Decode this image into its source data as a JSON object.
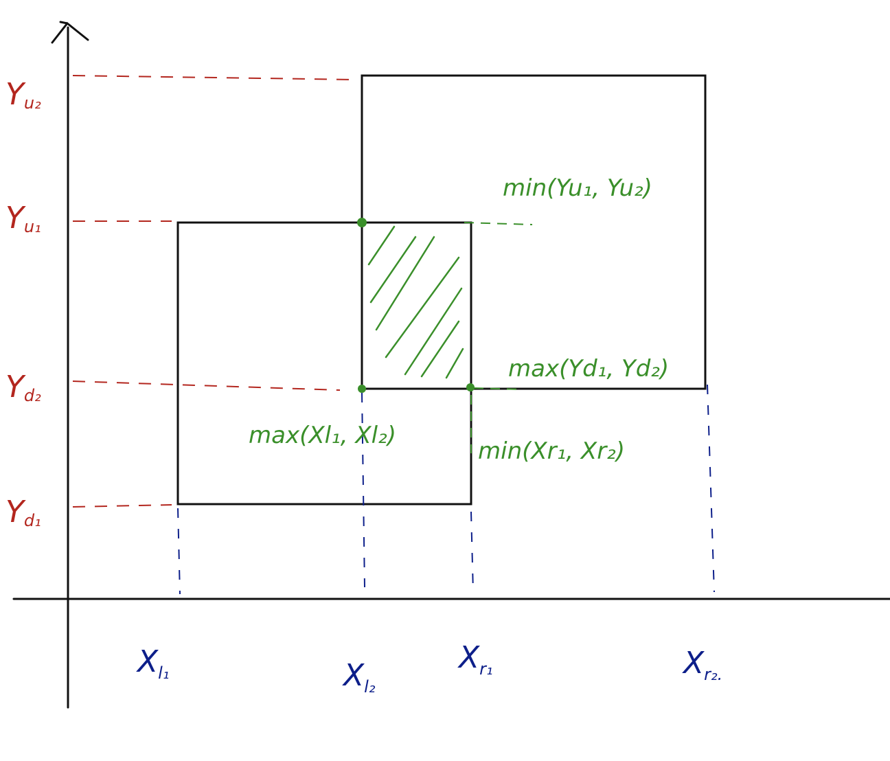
{
  "colors": {
    "axis": "#111111",
    "rect": "#111111",
    "y_labels": "#b3261e",
    "x_labels": "#0d1f8a",
    "overlap": "#3a8f2a"
  },
  "y_labels": {
    "yu2": {
      "base": "Y",
      "sub": "u₂"
    },
    "yu1": {
      "base": "Y",
      "sub": "u₁"
    },
    "yd2": {
      "base": "Y",
      "sub": "d₂"
    },
    "yd1": {
      "base": "Y",
      "sub": "d₁"
    }
  },
  "x_labels": {
    "xl1": {
      "base": "X",
      "sub": "l₁"
    },
    "xl2": {
      "base": "X",
      "sub": "l₂"
    },
    "xr1": {
      "base": "X",
      "sub": "r₁"
    },
    "xr2": {
      "base": "X",
      "sub": "r₂."
    }
  },
  "overlap_labels": {
    "top": "min(Yu₁, Yu₂)",
    "bottom": "max(Yd₁, Yd₂)",
    "left": "max(Xl₁, Xl₂)",
    "right": "min(Xr₁, Xr₂)"
  }
}
